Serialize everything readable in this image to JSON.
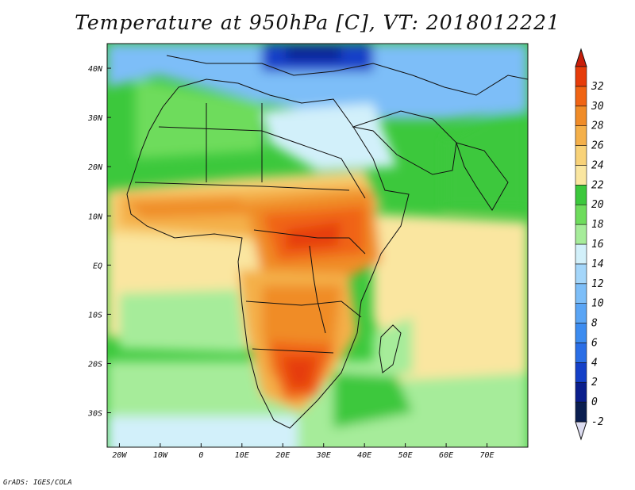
{
  "title": "Temperature at 950hPa [C], VT: 2018012221",
  "credit": "GrADS: IGES/COLA",
  "map": {
    "lon_min": -23,
    "lon_max": 80,
    "lat_min": -37,
    "lat_max": 45,
    "x_ticks": [
      {
        "lon": -20,
        "label": "20W"
      },
      {
        "lon": -10,
        "label": "10W"
      },
      {
        "lon": 0,
        "label": "0"
      },
      {
        "lon": 10,
        "label": "10E"
      },
      {
        "lon": 20,
        "label": "20E"
      },
      {
        "lon": 30,
        "label": "30E"
      },
      {
        "lon": 40,
        "label": "40E"
      },
      {
        "lon": 50,
        "label": "50E"
      },
      {
        "lon": 60,
        "label": "60E"
      },
      {
        "lon": 70,
        "label": "70E"
      }
    ],
    "y_ticks": [
      {
        "lat": 40,
        "label": "40N"
      },
      {
        "lat": 30,
        "label": "30N"
      },
      {
        "lat": 20,
        "label": "20N"
      },
      {
        "lat": 10,
        "label": "10N"
      },
      {
        "lat": 0,
        "label": "EQ"
      },
      {
        "lat": -10,
        "label": "10S"
      },
      {
        "lat": -20,
        "label": "20S"
      },
      {
        "lat": -30,
        "label": "30S"
      }
    ]
  },
  "colorbar": {
    "min_label": "-2",
    "levels": [
      {
        "label": "0",
        "color": "#0a1e8c"
      },
      {
        "label": "2",
        "color": "#1440c8"
      },
      {
        "label": "4",
        "color": "#2a6ee6"
      },
      {
        "label": "6",
        "color": "#3c8cf0"
      },
      {
        "label": "8",
        "color": "#5aa5f5"
      },
      {
        "label": "10",
        "color": "#7dbef8"
      },
      {
        "label": "12",
        "color": "#a4d6fa"
      },
      {
        "label": "14",
        "color": "#d2f0fa"
      },
      {
        "label": "16",
        "color": "#a6ec9a"
      },
      {
        "label": "18",
        "color": "#6edc5c"
      },
      {
        "label": "20",
        "color": "#3cc83c"
      },
      {
        "label": "22",
        "color": "#fae6a0"
      },
      {
        "label": "24",
        "color": "#f8d278"
      },
      {
        "label": "26",
        "color": "#f4b04a"
      },
      {
        "label": "28",
        "color": "#f08c28"
      },
      {
        "label": "30",
        "color": "#f06414"
      },
      {
        "label": "32",
        "color": "#e63c0a"
      }
    ],
    "over_color": "#c81e0a",
    "under_color": "#dcdcf0"
  }
}
